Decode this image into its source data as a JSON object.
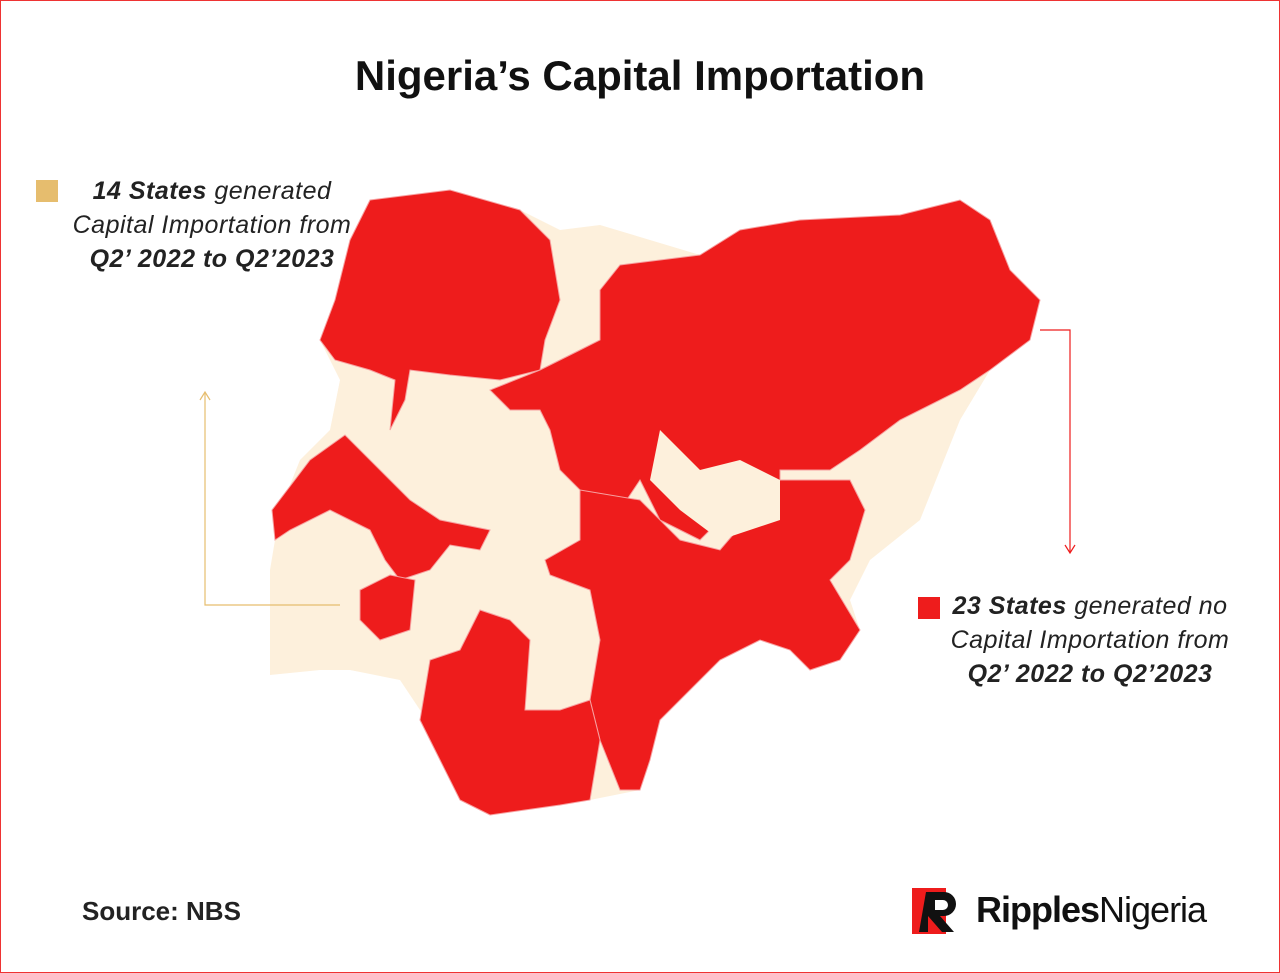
{
  "header": {
    "title": "Nigeria’s Capital Importation"
  },
  "legend": [
    {
      "count": "14 States",
      "text": " generated Capital Importation from ",
      "period": "Q2’ 2022 to Q2’2023",
      "color": "#e6bd6e"
    },
    {
      "count": "23 States",
      "text": " generated no Capital Importation from ",
      "period": "Q2’ 2022 to Q2’2023",
      "color": "#ee1c1c"
    }
  ],
  "footer": {
    "source": "Source: NBS",
    "logo_bold": "Ripples",
    "logo_light": "Nigeria"
  }
}
